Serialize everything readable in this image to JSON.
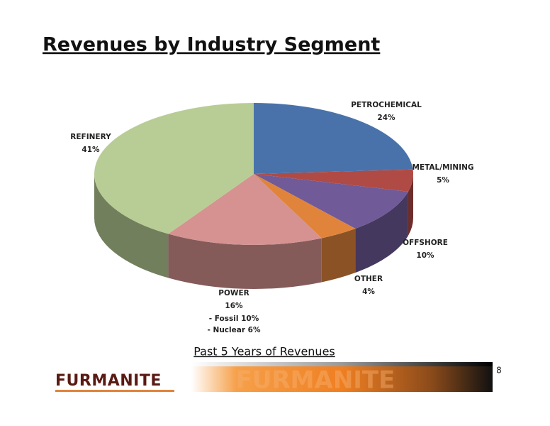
{
  "title": "Revenues by Industry Segment",
  "subtitle": "Past 5 Years of Revenues",
  "page_number": "8",
  "logo": "FURMANITE",
  "chart_data": {
    "type": "pie",
    "categories": [
      "PETROCHEMICAL",
      "METAL/MINING",
      "OFFSHORE",
      "OTHER",
      "POWER",
      "REFINERY"
    ],
    "values": [
      24,
      5,
      10,
      4,
      16,
      41
    ],
    "value_labels": [
      "24%",
      "5%",
      "10%",
      "4%",
      "16%",
      "41%"
    ],
    "colors": [
      "#4a72aa",
      "#b04a45",
      "#705a98",
      "#e0843c",
      "#d69291",
      "#b8cd95"
    ],
    "annotations": [
      "- Fossil 10%",
      "- Nuclear 6%"
    ]
  }
}
